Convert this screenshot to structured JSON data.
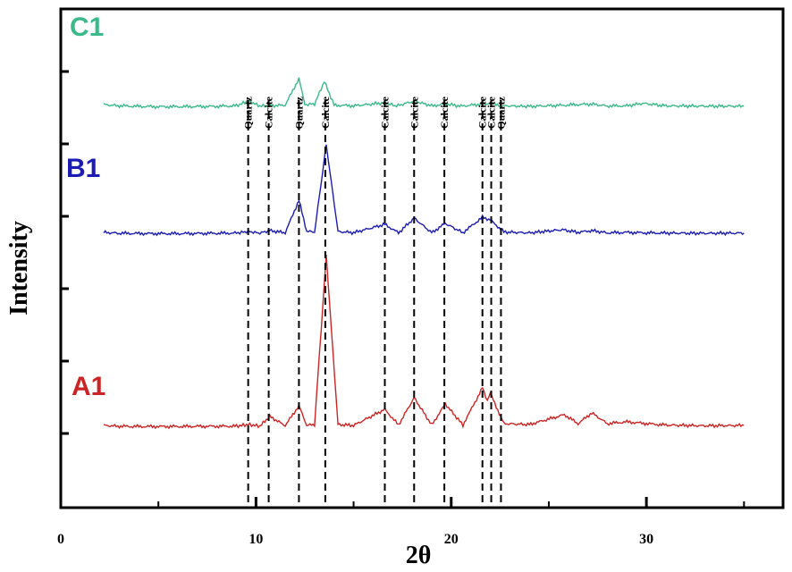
{
  "chart_data": {
    "type": "line",
    "xlabel": "2θ",
    "ylabel": "Intensity",
    "xlim": [
      0,
      37
    ],
    "x_ticks": [
      0,
      10,
      20,
      30
    ],
    "y_ticks_count": 6,
    "grid": false,
    "legend": "none",
    "series": [
      {
        "name": "C1",
        "color": "#3cb98a",
        "baseline": 120,
        "x": [
          2.2,
          3,
          4,
          5,
          6,
          7,
          8,
          9,
          9.6,
          10.2,
          10.7,
          11.5,
          12.2,
          12.5,
          13,
          13.5,
          14,
          15,
          16.6,
          17.2,
          18.1,
          19,
          19.7,
          20.5,
          21.6,
          22.0,
          22.6,
          24,
          25.5,
          26.5,
          27.2,
          28,
          29,
          29.8,
          31,
          33,
          35
        ],
        "y": [
          1.5,
          0.8,
          0.5,
          0.3,
          0.3,
          0.4,
          0.5,
          0.8,
          3.5,
          0.7,
          0.8,
          1.2,
          16,
          1.5,
          1.8,
          14.5,
          1.2,
          0.8,
          2.5,
          0.7,
          3.5,
          0.8,
          1.8,
          0.6,
          1.8,
          2.2,
          0.8,
          0.5,
          1.0,
          1.5,
          1.8,
          0.7,
          0.8,
          2.2,
          0.8,
          0.6,
          0.6
        ]
      },
      {
        "name": "B1",
        "color": "#1c1cb4",
        "baseline": 262,
        "x": [
          2.2,
          3,
          4,
          5,
          6,
          7,
          8,
          9,
          9.6,
          10.2,
          10.7,
          11.5,
          12.2,
          12.6,
          13,
          13.6,
          14.2,
          15,
          16.6,
          17.3,
          18.1,
          19,
          19.7,
          20.6,
          21.6,
          22.0,
          22.7,
          24,
          25.7,
          26.5,
          27.2,
          28,
          29,
          30,
          31,
          33,
          35
        ],
        "y": [
          1.0,
          0.5,
          0.4,
          0.3,
          0.3,
          0.4,
          0.5,
          0.6,
          1.5,
          0.6,
          2.0,
          0.8,
          19,
          1.5,
          1.2,
          50,
          1.5,
          0.8,
          5.5,
          0.7,
          9.0,
          0.8,
          6.0,
          0.8,
          9.5,
          8.0,
          1.2,
          0.7,
          2.5,
          1.0,
          2.0,
          0.7,
          1.0,
          0.7,
          0.6,
          0.5,
          0.6
        ]
      },
      {
        "name": "A1",
        "color": "#cc2424",
        "baseline": 478,
        "x": [
          2.2,
          3,
          4,
          5,
          6,
          7,
          8,
          9,
          9.6,
          10.2,
          10.7,
          11.5,
          12.2,
          12.6,
          13,
          13.6,
          14.2,
          15,
          16.6,
          17.3,
          18.1,
          19,
          19.7,
          20.6,
          21.6,
          21.85,
          22.0,
          22.7,
          24,
          25.8,
          26.5,
          27.2,
          28,
          29,
          30,
          31,
          33,
          35
        ],
        "y": [
          1.0,
          0.5,
          0.4,
          0.4,
          0.4,
          0.5,
          0.5,
          0.6,
          1.5,
          0.6,
          6.0,
          0.9,
          12.0,
          1.0,
          1.5,
          96,
          1.5,
          1.0,
          10.0,
          1.2,
          16.5,
          1.2,
          13.0,
          1.2,
          22,
          15,
          19,
          2.0,
          1.5,
          7.0,
          2.0,
          8.0,
          2.0,
          3.0,
          2.0,
          1.2,
          0.8,
          1.0
        ]
      }
    ],
    "reference_lines": [
      {
        "x": 9.6,
        "label": "Quartz"
      },
      {
        "x": 10.65,
        "label": "Calcite"
      },
      {
        "x": 12.2,
        "label": "Quartz"
      },
      {
        "x": 13.55,
        "label": "Calcite"
      },
      {
        "x": 16.6,
        "label": "Calcite"
      },
      {
        "x": 18.1,
        "label": "Calcite"
      },
      {
        "x": 19.65,
        "label": "Calcite"
      },
      {
        "x": 21.6,
        "label": "Calcite"
      },
      {
        "x": 22.05,
        "label": "Calcite"
      },
      {
        "x": 22.55,
        "label": "Quartz"
      }
    ],
    "sample_labels": [
      {
        "text": "C1",
        "color": "#3cb98a"
      },
      {
        "text": "B1",
        "color": "#1c1cb4"
      },
      {
        "text": "A1",
        "color": "#cc2424"
      }
    ]
  }
}
